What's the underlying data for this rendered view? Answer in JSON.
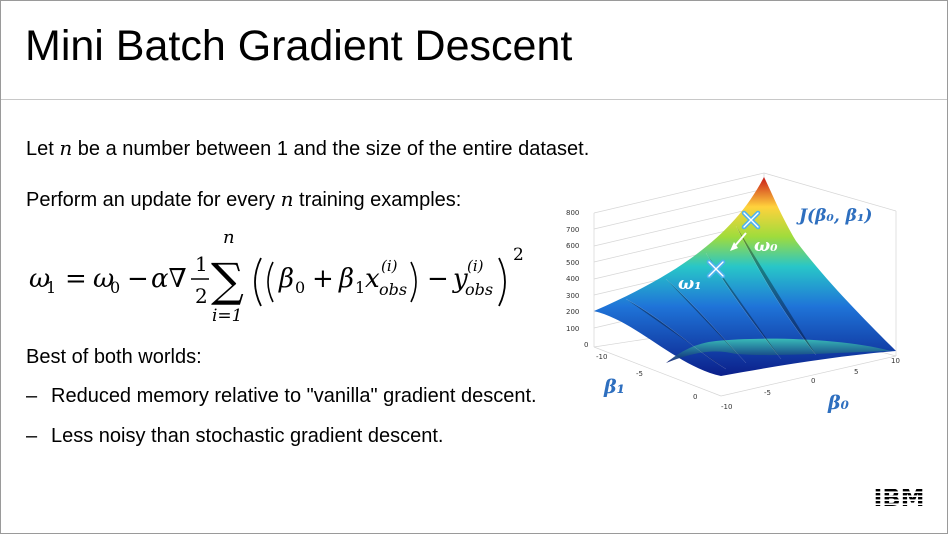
{
  "slide": {
    "title": "Mini Batch Gradient Descent",
    "line1": {
      "before": "Let ",
      "var": "n",
      "after": " be a number between 1 and the size of the entire dataset."
    },
    "line2": {
      "before": "Perform an update for every ",
      "var": "n",
      "after": " training examples:"
    },
    "formula": {
      "lhs": "ω",
      "lhs_sub": "1",
      "eq": "=",
      "w0": "ω",
      "w0_sub": "0",
      "minus": "−",
      "alpha_nabla": "α∇",
      "frac_num": "1",
      "frac_den": "2",
      "sigma": "∑",
      "sum_upper": "n",
      "sum_lower": "i=1",
      "beta0": "β",
      "beta0_sub": "0",
      "plus": "+",
      "beta1": "β",
      "beta1_sub": "1",
      "x": "x",
      "x_sup": "(i)",
      "x_sub": "obs",
      "y": "y",
      "y_sup": "(i)",
      "y_sub": "obs",
      "exponent": "2"
    },
    "line3": "Best of both worlds:",
    "bullets": [
      "Reduced memory relative to \"vanilla\" gradient descent.",
      "Less noisy than stochastic gradient descent."
    ],
    "logo": "IBM"
  },
  "plot": {
    "z_ticks": [
      "800",
      "700",
      "600",
      "500",
      "400",
      "300",
      "200",
      "100",
      "0"
    ],
    "beta0_ticks": [
      "10",
      "5",
      "0",
      "-5",
      "-10"
    ],
    "beta1_ticks": [
      "0",
      "-5",
      "-10"
    ],
    "j_label": "J(β₀, β₁)",
    "omega0_label": "ω₀",
    "omega1_label": "ω₁",
    "beta1_axis_label": "β₁",
    "beta0_axis_label": "β₀",
    "colors": {
      "label_blue": "#2e6fbf",
      "marker": "#4fb2ee"
    }
  }
}
